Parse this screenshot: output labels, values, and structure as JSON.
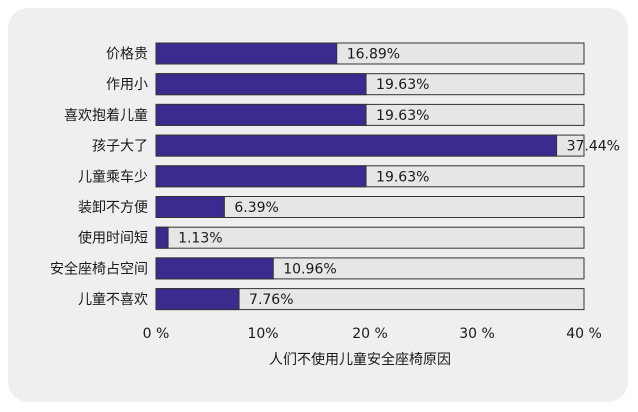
{
  "chart_data": {
    "type": "bar",
    "orientation": "horizontal",
    "categories": [
      "价格贵",
      "作用小",
      "喜欢抱着儿童",
      "孩子大了",
      "儿童乘车少",
      "装卸不方便",
      "使用时间短",
      "安全座椅占空间",
      "儿童不喜欢"
    ],
    "values": [
      16.89,
      19.63,
      19.63,
      37.44,
      19.63,
      6.39,
      1.13,
      10.96,
      7.76
    ],
    "value_labels": [
      "16.89%",
      "19.63%",
      "19.63%",
      "37.44%",
      "19.63%",
      "6.39%",
      "1.13%",
      "10.96%",
      "7.76%"
    ],
    "xlim": [
      0,
      40
    ],
    "xticks": [
      0,
      10,
      20,
      30,
      40
    ],
    "xtick_labels": [
      "0 %",
      "10%",
      "20 %",
      "30 %",
      "40 %"
    ],
    "xlabel": "人们不使用儿童安全座椅原因",
    "ylabel": "",
    "grid": false,
    "colors": {
      "bar": "#3d2a8e",
      "track": "#e6e6e6",
      "track_border": "#333333",
      "background": "#efefef"
    }
  }
}
